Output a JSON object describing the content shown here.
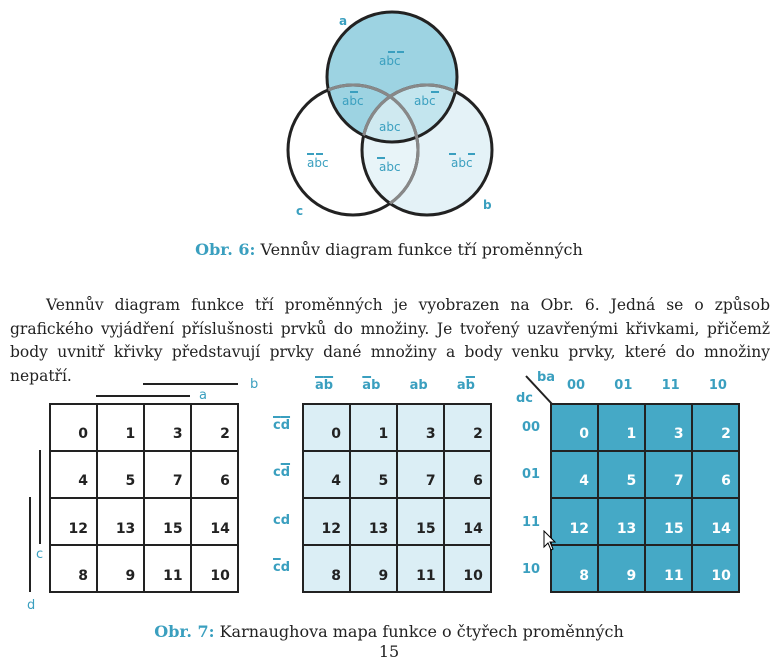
{
  "venn": {
    "labels": {
      "a": "a",
      "b": "b",
      "c": "c"
    },
    "regions": {
      "a_only": "abc",
      "ab": "abc",
      "abc": "abc",
      "ac": "abc",
      "bc": "abc",
      "b_only": "abc",
      "c_only": "abc"
    },
    "colors": {
      "accent": "#3a9fbf",
      "a_fill": "#9dd3e2",
      "b_fill": "#e4f2f7",
      "ab_fill": "#bfe3ec",
      "center_fill": "#cfe9f0",
      "stroke": "#222222"
    }
  },
  "caption6": {
    "label": "Obr. 6:",
    "text": " Vennův diagram funkce tří proměnných"
  },
  "paragraph": "Vennův diagram funkce tří proměnných je vyobrazen na Obr. 6. Jedná se o způsob grafického vyjádření příslušnosti prvků do množiny. Je tvořený uzavřenými křivkami, přičemž body uvnitř křivky představují prvky dané množiny a body venku prvky, které do množiny nepatří.",
  "kmap": {
    "cells": [
      [
        "0",
        "1",
        "3",
        "2"
      ],
      [
        "4",
        "5",
        "7",
        "6"
      ],
      [
        "12",
        "13",
        "15",
        "14"
      ],
      [
        "8",
        "9",
        "11",
        "10"
      ]
    ],
    "map1": {
      "label_a": "a",
      "label_b": "b",
      "label_c": "c",
      "label_d": "d"
    },
    "map2": {
      "cols": [
        {
          "text": "ab",
          "over": "both"
        },
        {
          "text": "ab",
          "over": "first"
        },
        {
          "text": "ab",
          "over": "none"
        },
        {
          "text": "ab",
          "over": "second"
        }
      ],
      "rows": [
        {
          "text": "cd",
          "over": "both"
        },
        {
          "text": "cd",
          "over": "second"
        },
        {
          "text": "cd",
          "over": "none"
        },
        {
          "text": "cd",
          "over": "first"
        }
      ]
    },
    "map3": {
      "corner_top": "ba",
      "corner_left": "dc",
      "cols": [
        "00",
        "01",
        "11",
        "10"
      ],
      "rows": [
        "00",
        "01",
        "11",
        "10"
      ]
    },
    "colors": {
      "map2_fill": "#dbeef5",
      "map3_fill": "#45a9c6",
      "accent": "#3a9fbf"
    }
  },
  "caption7": {
    "label": "Obr. 7:",
    "text": " Karnaughova mapa funkce o čtyřech proměnných"
  },
  "page_number": "15"
}
